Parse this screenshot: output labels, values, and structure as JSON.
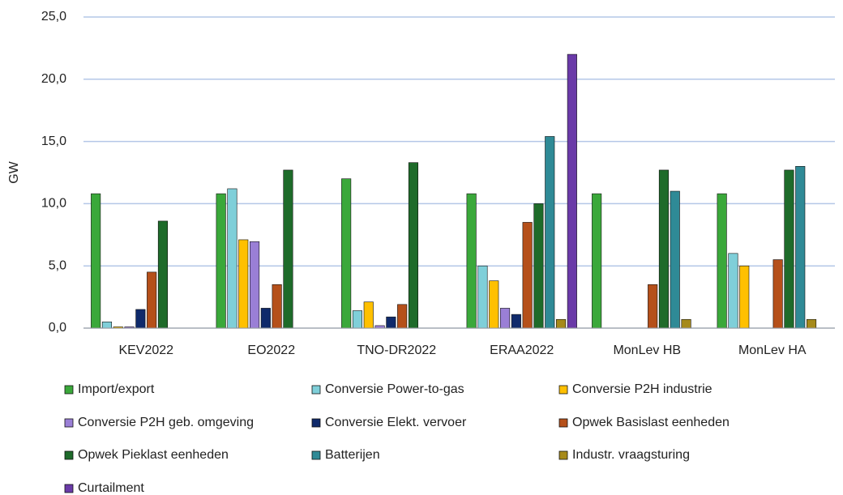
{
  "chart_data": {
    "type": "bar",
    "ylabel": "GW",
    "categories": [
      "KEV2022",
      "EO2022",
      "TNO-DR2022",
      "ERAA2022",
      "MonLev HB",
      "MonLev HA"
    ],
    "series": [
      {
        "name": "Import/export",
        "color": "#3aa83a",
        "values": [
          10.8,
          10.8,
          12.0,
          10.8,
          10.8,
          10.8
        ]
      },
      {
        "name": "Conversie Power-to-gas",
        "color": "#7fcfd9",
        "values": [
          0.5,
          11.2,
          1.4,
          5.0,
          0,
          6.0
        ]
      },
      {
        "name": "Conversie P2H industrie",
        "color": "#ffc000",
        "values": [
          0.1,
          7.1,
          2.1,
          3.8,
          0,
          5.0
        ]
      },
      {
        "name": "Conversie P2H geb. omgeving",
        "color": "#9a7fd6",
        "values": [
          0.1,
          6.95,
          0.2,
          1.6,
          0,
          0
        ]
      },
      {
        "name": "Conversie Elekt. vervoer",
        "color": "#0f2a6b",
        "values": [
          1.5,
          1.6,
          0.9,
          1.1,
          0,
          0
        ]
      },
      {
        "name": "Opwek Basislast eenheden",
        "color": "#b5501a",
        "values": [
          4.5,
          3.5,
          1.9,
          8.5,
          3.5,
          5.5
        ]
      },
      {
        "name": "Opwek Pieklast eenheden",
        "color": "#1e6b2a",
        "values": [
          8.6,
          12.7,
          13.3,
          10.0,
          12.7,
          12.7
        ]
      },
      {
        "name": "Batterijen",
        "color": "#2f8a96",
        "values": [
          0,
          0,
          0,
          15.4,
          11.0,
          13.0
        ]
      },
      {
        "name": "Industr. vraagsturing",
        "color": "#a68a1a",
        "values": [
          0,
          0,
          0,
          0.7,
          0.7,
          0.7
        ]
      },
      {
        "name": "Curtailment",
        "color": "#6a3aa8",
        "values": [
          0,
          0,
          0,
          22.0,
          0,
          0
        ]
      }
    ],
    "ylim": [
      0,
      25
    ],
    "yticks": [
      {
        "value": 0,
        "label": "0,0"
      },
      {
        "value": 5,
        "label": "5,0"
      },
      {
        "value": 10,
        "label": "10,0"
      },
      {
        "value": 15,
        "label": "15,0"
      },
      {
        "value": 20,
        "label": "20,0"
      },
      {
        "value": 25,
        "label": "25,0"
      }
    ],
    "grid": true,
    "legend": "bottom"
  }
}
